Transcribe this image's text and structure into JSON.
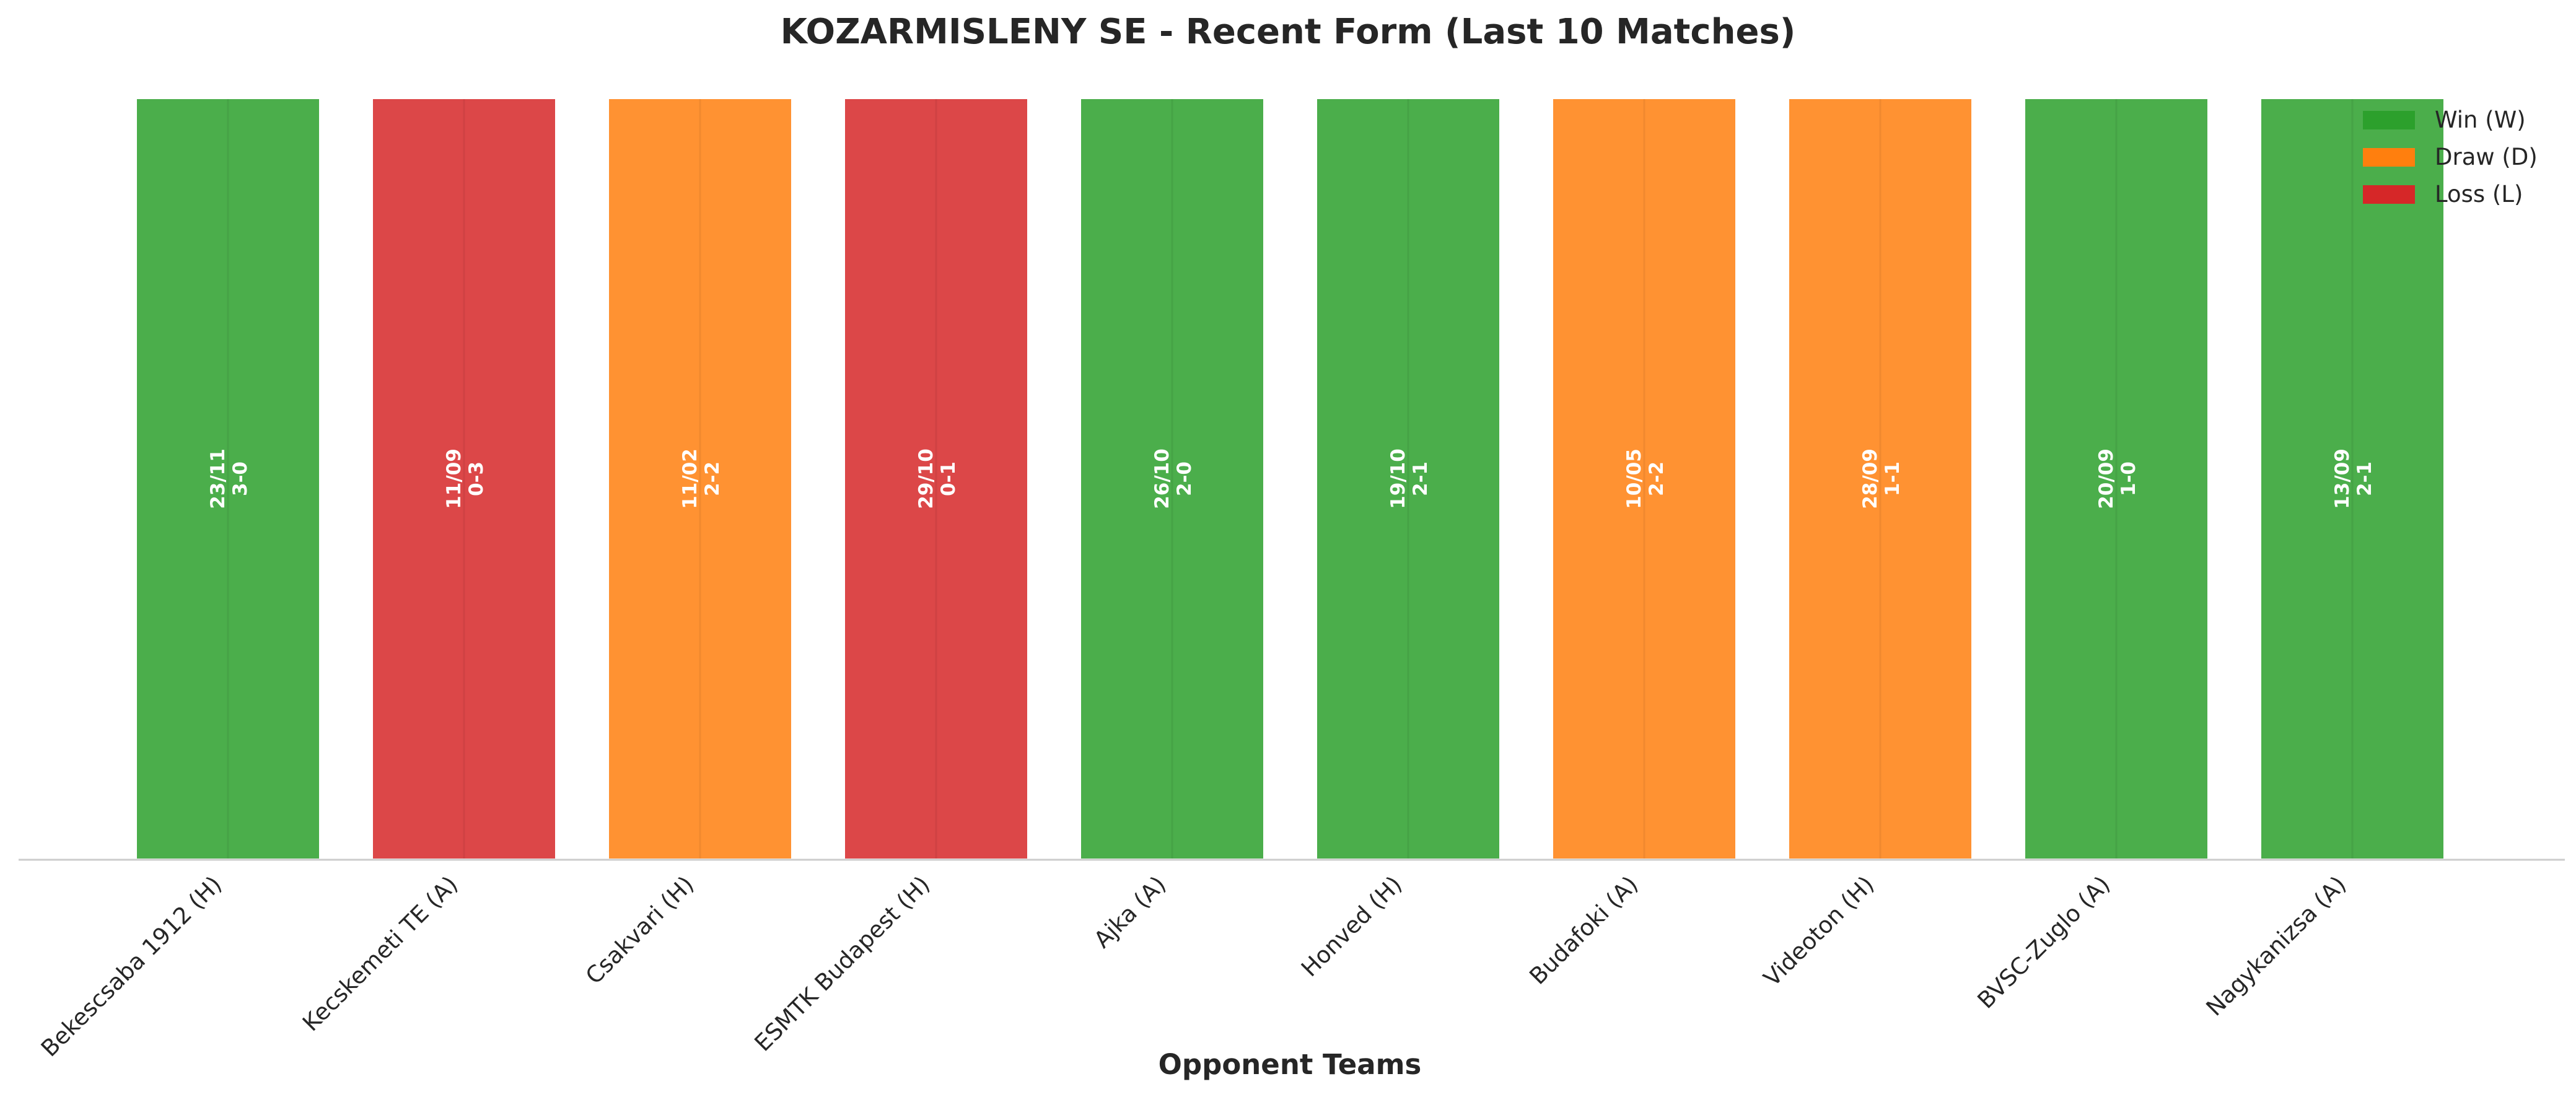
{
  "chart_data": {
    "type": "bar",
    "title": "KOZARMISLENY SE - Recent Form (Last 10 Matches)",
    "xlabel": "Opponent Teams",
    "ylabel": "",
    "ylim": [
      0,
      1
    ],
    "grid": false,
    "legend_position": "top-right",
    "categories": [
      "Bekescsaba 1912 (H)",
      "Kecskemeti TE (A)",
      "Csakvari (H)",
      "ESMTK Budapest (H)",
      "Ajka (A)",
      "Honved (H)",
      "Budafoki (A)",
      "Videoton (H)",
      "BVSC-Zuglo (A)",
      "Nagykanizsa (A)"
    ],
    "values": [
      1,
      1,
      1,
      1,
      1,
      1,
      1,
      1,
      1,
      1
    ],
    "results": [
      "W",
      "L",
      "D",
      "L",
      "W",
      "W",
      "D",
      "D",
      "W",
      "W"
    ],
    "dates": [
      "23/11",
      "11/09",
      "11/02",
      "29/10",
      "26/10",
      "19/10",
      "10/05",
      "28/09",
      "20/09",
      "13/09"
    ],
    "scores": [
      "3-0",
      "0-3",
      "2-2",
      "0-1",
      "2-0",
      "2-1",
      "2-2",
      "1-1",
      "1-0",
      "2-1"
    ],
    "legend": [
      {
        "key": "W",
        "label": "Win (W)",
        "color": "#2ca02c"
      },
      {
        "key": "D",
        "label": "Draw (D)",
        "color": "#ff7f0e"
      },
      {
        "key": "L",
        "label": "Loss (L)",
        "color": "#d62728"
      }
    ]
  }
}
